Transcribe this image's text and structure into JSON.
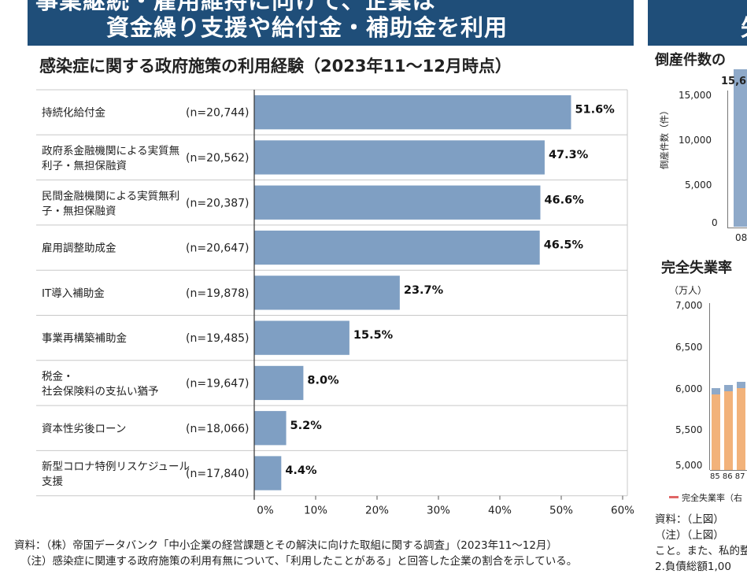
{
  "header": {
    "banner_left_line1": "事業継続・雇用維持に向けて、企業は",
    "banner_left_line2": "資金繰り支援や給付金・補助金を利用",
    "banner_right_text": "失"
  },
  "chart_data": {
    "type": "bar",
    "orientation": "horizontal",
    "title": "感染症に関する政府施策の利用経験（2023年11～12月時点）",
    "categories": [
      "持続化給付金",
      "政府系金融機関による実質無|利子・無担保融資",
      "民間金融機関による実質無利|子・無担保融資",
      "雇用調整助成金",
      "IT導入補助金",
      "事業再構築補助金",
      "税金・|社会保険料の支払い猶予",
      "資本性劣後ローン",
      "新型コロナ特例リスケジュール|支援"
    ],
    "sample_sizes": [
      "(n=20,744)",
      "(n=20,562)",
      "(n=20,387)",
      "(n=20,647)",
      "(n=19,878)",
      "(n=19,485)",
      "(n=19,647)",
      "(n=18,066)",
      "(n=17,840)"
    ],
    "values": [
      51.6,
      47.3,
      46.6,
      46.5,
      23.7,
      15.5,
      8.0,
      5.2,
      4.4
    ],
    "value_labels": [
      "51.6%",
      "47.3%",
      "46.6%",
      "46.5%",
      "23.7%",
      "15.5%",
      "8.0%",
      "5.2%",
      "4.4%"
    ],
    "xlim": [
      0,
      60
    ],
    "xticks": [
      0,
      10,
      20,
      30,
      40,
      50,
      60
    ],
    "xtick_labels": [
      "0%",
      "10%",
      "20%",
      "30%",
      "40%",
      "50%",
      "60%"
    ],
    "bar_color": "#7f9fc3",
    "xlabel": "",
    "ylabel": ""
  },
  "notes": {
    "source": "資料：（株）帝国データバンク「中小企業の経営課題とその解決に向けた取組に関する調査」（2023年11～12月）",
    "note": "（注）感染症に関連する政府施策の利用有無について、「利用したことがある」と回答した企業の割合を示している。"
  },
  "side_panel": {
    "title_top": "倒産件数の",
    "top_value_label": "15,6",
    "top_yaxis_label": "倒産件数（件）",
    "top_yticks": [
      "15,000",
      "10,000",
      "5,000",
      "0"
    ],
    "top_xtick": "08",
    "title_bottom": "完全失業率",
    "bottom_unit": "（万人）",
    "bottom_yticks": [
      "7,000",
      "6,500",
      "6,000",
      "5,500",
      "5,000"
    ],
    "bottom_xticks": "85 86 87",
    "legend": "完全失業率（右",
    "note_lines": [
      "資料：（上図）",
      "（注）（上図）",
      "こと。また、私的整",
      "2.負債総額1,00"
    ]
  },
  "colors": {
    "banner": "#1f4e79",
    "bar": "#7f9fc3",
    "grid": "#c8c8c8",
    "side_bar_orange": "#f2b27a",
    "side_bar_blue": "#8ea9c9",
    "side_line_red": "#e06666"
  }
}
